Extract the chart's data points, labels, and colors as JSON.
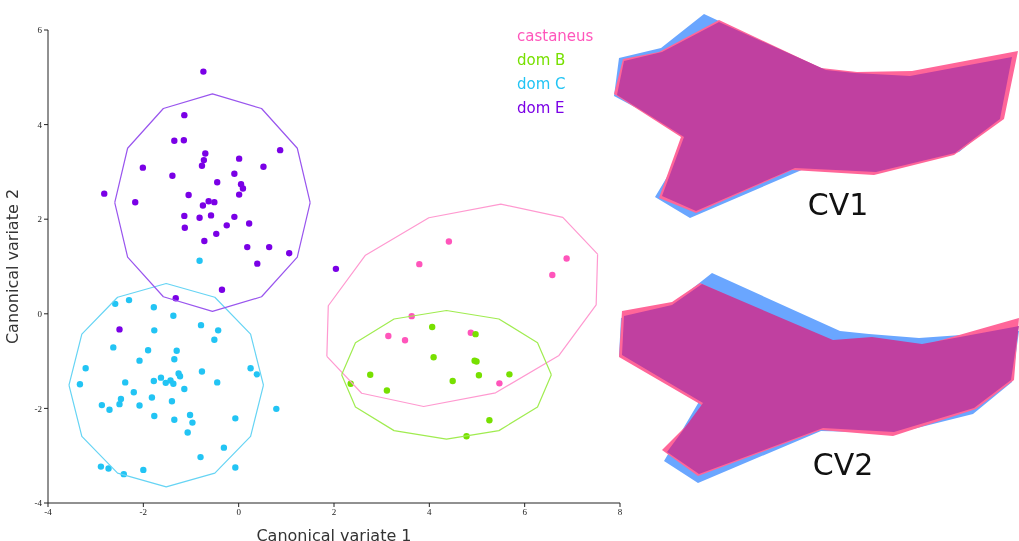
{
  "chart_data": {
    "type": "scatter",
    "xlabel": "Canonical variate 1",
    "ylabel": "Canonical variate 2",
    "xlim": [
      -4,
      8
    ],
    "xticks": [
      -4,
      -2,
      0,
      2,
      4,
      6,
      8
    ],
    "ylim": [
      -4,
      6
    ],
    "yticks": [
      -4,
      -2,
      0,
      2,
      4,
      6
    ],
    "marker": "circle",
    "annotations": [
      "CV1",
      "CV2"
    ],
    "series": [
      {
        "name": "castaneus",
        "color": "#ff55bb",
        "x": [
          4.41,
          3.79,
          6.88,
          6.58,
          3.63,
          3.14,
          3.49,
          4.87,
          5.47
        ],
        "values": [
          1.53,
          1.05,
          1.17,
          0.82,
          -0.05,
          -0.47,
          -0.56,
          -0.4,
          -1.47
        ]
      },
      {
        "name": "dom B",
        "color": "#77e000",
        "x": [
          4.06,
          4.97,
          4.09,
          4.95,
          4.99,
          5.04,
          5.68,
          4.49,
          2.76,
          2.35,
          3.11,
          5.26,
          4.78
        ],
        "values": [
          -0.28,
          -0.43,
          -0.92,
          -0.99,
          -1.01,
          -1.3,
          -1.28,
          -1.42,
          -1.29,
          -1.48,
          -1.62,
          -2.25,
          -2.59
        ]
      },
      {
        "name": "dom C",
        "color": "#22c4f4",
        "x": [
          -0.82,
          -2.59,
          -2.3,
          -1.78,
          -1.37,
          -1.77,
          -0.79,
          -0.43,
          -0.51,
          -2.63,
          -1.9,
          -1.3,
          -1.35,
          -2.08,
          -3.21,
          -3.33,
          -1.26,
          -1.23,
          -0.77,
          -1.63,
          -1.78,
          -1.53,
          -1.43,
          -1.37,
          -2.38,
          -1.14,
          -0.45,
          0.25,
          0.38,
          -2.2,
          -1.82,
          -2.47,
          -2.5,
          -2.87,
          -2.08,
          -2.71,
          -1.4,
          -1.77,
          -1.35,
          -1.02,
          -0.97,
          -1.07,
          -0.07,
          0.79,
          -0.31,
          -0.8,
          -0.07,
          -2.89,
          -2.73,
          -2.41,
          -2.0
        ],
        "values": [
          1.12,
          0.21,
          0.29,
          0.14,
          -0.04,
          -0.35,
          -0.24,
          -0.35,
          -0.55,
          -0.71,
          -0.77,
          -0.78,
          -0.96,
          -0.99,
          -1.15,
          -1.49,
          -1.26,
          -1.32,
          -1.22,
          -1.35,
          -1.42,
          -1.46,
          -1.41,
          -1.48,
          -1.45,
          -1.59,
          -1.45,
          -1.15,
          -1.28,
          -1.66,
          -1.77,
          -1.8,
          -1.91,
          -1.93,
          -1.94,
          -2.03,
          -1.85,
          -2.16,
          -2.24,
          -2.14,
          -2.3,
          -2.51,
          -2.21,
          -2.01,
          -2.83,
          -3.03,
          -3.25,
          -3.23,
          -3.27,
          -3.39,
          -3.3
        ]
      },
      {
        "name": "dom E",
        "color": "#7a00e6",
        "x": [
          -0.74,
          -1.14,
          -1.35,
          -1.15,
          -0.7,
          -0.73,
          -0.77,
          -2.01,
          -1.39,
          0.01,
          -0.09,
          0.52,
          0.87,
          -0.45,
          0.05,
          0.09,
          -2.82,
          0.01,
          -1.05,
          -2.17,
          -0.63,
          -0.51,
          -0.75,
          -1.14,
          -0.82,
          -0.58,
          -0.09,
          -0.25,
          0.22,
          -1.13,
          -0.47,
          -0.72,
          0.18,
          0.64,
          1.06,
          0.39,
          -0.35,
          -1.32,
          -2.5,
          2.04
        ],
        "values": [
          5.12,
          4.2,
          3.66,
          3.67,
          3.39,
          3.25,
          3.13,
          3.09,
          2.92,
          3.28,
          2.96,
          3.11,
          3.46,
          2.78,
          2.74,
          2.65,
          2.54,
          2.52,
          2.51,
          2.36,
          2.38,
          2.36,
          2.29,
          2.07,
          2.03,
          2.08,
          2.05,
          1.87,
          1.91,
          1.82,
          1.69,
          1.54,
          1.41,
          1.41,
          1.28,
          1.06,
          0.51,
          0.33,
          -0.33,
          0.95
        ]
      },
      {
        "type": "line",
        "marker": "none",
        "color": "#ff99d0",
        "x": [
          1.85,
          1.88,
          2.66,
          3.99,
          5.5,
          6.8,
          7.53
        ],
        "values": [
          -0.9,
          0.17,
          1.24,
          2.03,
          2.32,
          2.04,
          1.26
        ]
      },
      {
        "type": "line",
        "marker": "none",
        "color": "#ff99d0",
        "x": [
          1.85,
          2.58,
          3.88,
          5.39,
          6.72,
          7.5,
          7.53
        ],
        "values": [
          -0.9,
          -1.68,
          -1.96,
          -1.67,
          -0.88,
          0.19,
          1.26
        ]
      },
      {
        "type": "line",
        "marker": "none",
        "color": "#a0ec50",
        "x": [
          2.16,
          2.45,
          3.26,
          4.36,
          5.46,
          6.27,
          6.56
        ],
        "values": [
          -1.29,
          -0.61,
          -0.11,
          0.07,
          -0.11,
          -0.61,
          -1.29
        ]
      },
      {
        "type": "line",
        "marker": "none",
        "color": "#a0ec50",
        "x": [
          2.16,
          2.45,
          3.26,
          4.36,
          5.46,
          6.27,
          6.56
        ],
        "values": [
          -1.29,
          -1.97,
          -2.47,
          -2.65,
          -2.47,
          -1.97,
          -1.29
        ]
      },
      {
        "type": "line",
        "marker": "none",
        "color": "#66d4f4",
        "x": [
          -3.56,
          -3.29,
          -2.54,
          -1.52,
          -0.5,
          0.25,
          0.52
        ],
        "values": [
          -1.51,
          -0.43,
          0.35,
          0.64,
          0.35,
          -0.43,
          -1.51
        ]
      },
      {
        "type": "line",
        "marker": "none",
        "color": "#66d4f4",
        "x": [
          -3.56,
          -3.29,
          -2.54,
          -1.52,
          -0.5,
          0.25,
          0.52
        ],
        "values": [
          -1.51,
          -2.59,
          -3.37,
          -3.66,
          -3.37,
          -2.59,
          -1.51
        ]
      },
      {
        "type": "line",
        "marker": "none",
        "color": "#9955ee",
        "x": [
          -2.6,
          -2.33,
          -1.58,
          -0.55,
          0.48,
          1.23,
          1.5
        ],
        "values": [
          2.35,
          3.5,
          4.34,
          4.65,
          4.34,
          3.5,
          2.35
        ]
      },
      {
        "type": "line",
        "marker": "none",
        "color": "#9955ee",
        "x": [
          -2.6,
          -2.33,
          -1.58,
          -0.55,
          0.48,
          1.23,
          1.5
        ],
        "values": [
          2.35,
          1.2,
          0.36,
          0.05,
          0.36,
          1.2,
          2.35
        ]
      }
    ]
  }
}
